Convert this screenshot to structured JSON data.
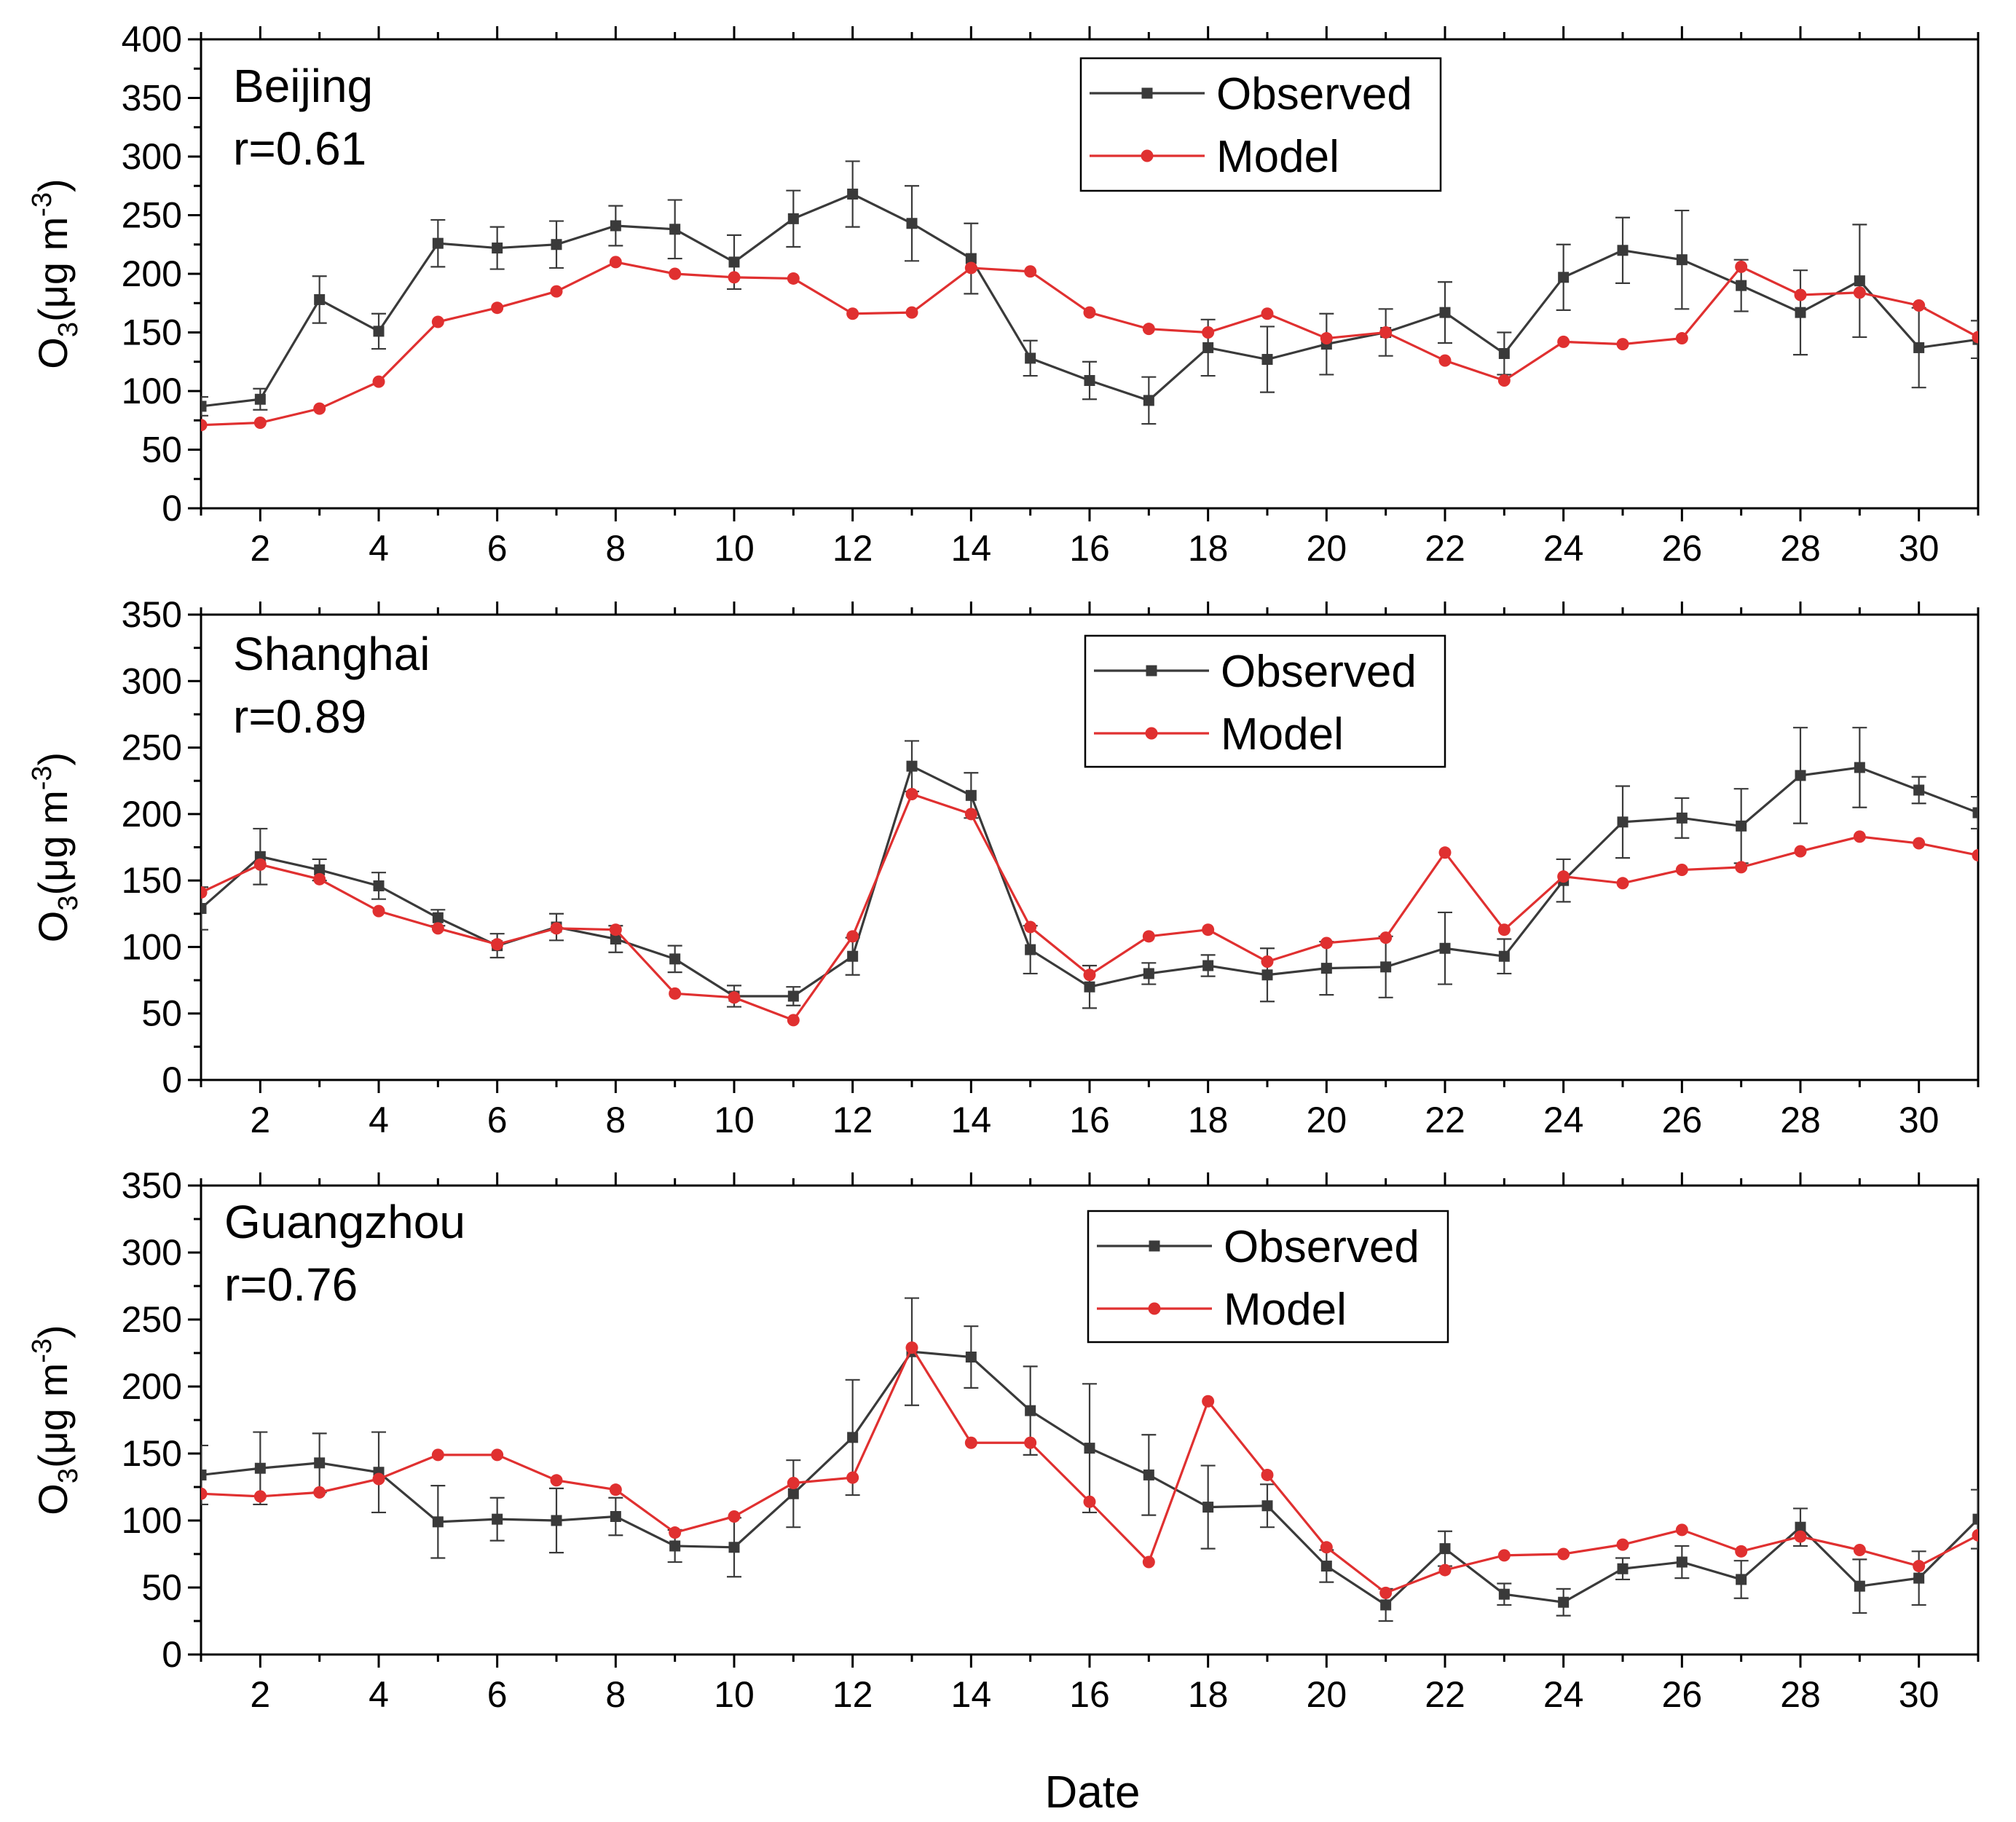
{
  "chart_data": [
    {
      "type": "line",
      "city": "Beijing",
      "annotation": "r=0.61",
      "ylim": [
        0,
        400
      ],
      "yticks": [
        0,
        50,
        100,
        150,
        200,
        250,
        300,
        350,
        400
      ],
      "xlim": [
        1,
        31
      ],
      "xticks": [
        2,
        4,
        6,
        8,
        10,
        12,
        14,
        16,
        18,
        20,
        22,
        24,
        26,
        28,
        30
      ],
      "ylabel_main": "O",
      "ylabel_sub": "3",
      "ylabel_unit": "(μg m",
      "ylabel_sup": "-3",
      "ylabel_close": ")",
      "x": [
        1,
        2,
        3,
        4,
        5,
        6,
        7,
        8,
        9,
        10,
        11,
        12,
        13,
        14,
        15,
        16,
        17,
        18,
        19,
        20,
        21,
        22,
        23,
        24,
        25,
        26,
        27,
        28,
        29,
        30,
        31
      ],
      "series": [
        {
          "name": "Observed",
          "color": "#3a3a3a",
          "marker": "square",
          "values": [
            87,
            93,
            178,
            151,
            226,
            222,
            225,
            241,
            238,
            210,
            247,
            268,
            243,
            213,
            128,
            109,
            92,
            137,
            127,
            140,
            150,
            167,
            132,
            197,
            220,
            212,
            190,
            167,
            194,
            137,
            144
          ],
          "errors": [
            8,
            9,
            20,
            15,
            20,
            18,
            20,
            17,
            25,
            23,
            24,
            28,
            32,
            30,
            15,
            16,
            20,
            24,
            28,
            26,
            20,
            26,
            18,
            28,
            28,
            42,
            22,
            36,
            48,
            34,
            16
          ]
        },
        {
          "name": "Model",
          "color": "#e03030",
          "marker": "circle",
          "values": [
            71,
            73,
            85,
            108,
            159,
            171,
            185,
            210,
            200,
            197,
            196,
            166,
            167,
            205,
            202,
            167,
            153,
            150,
            166,
            145,
            150,
            126,
            109,
            142,
            140,
            145,
            206,
            182,
            184,
            173,
            146
          ]
        }
      ]
    },
    {
      "type": "line",
      "city": "Shanghai",
      "annotation": "r=0.89",
      "ylim": [
        0,
        350
      ],
      "yticks": [
        0,
        50,
        100,
        150,
        200,
        250,
        300,
        350
      ],
      "xlim": [
        1,
        31
      ],
      "xticks": [
        2,
        4,
        6,
        8,
        10,
        12,
        14,
        16,
        18,
        20,
        22,
        24,
        26,
        28,
        30
      ],
      "ylabel_main": "O",
      "ylabel_sub": "3",
      "ylabel_unit": "(μg m",
      "ylabel_sup": "-3",
      "ylabel_close": ")",
      "x": [
        1,
        2,
        3,
        4,
        5,
        6,
        7,
        8,
        9,
        10,
        11,
        12,
        13,
        14,
        15,
        16,
        17,
        18,
        19,
        20,
        21,
        22,
        23,
        24,
        25,
        26,
        27,
        28,
        29,
        30,
        31
      ],
      "series": [
        {
          "name": "Observed",
          "color": "#3a3a3a",
          "marker": "square",
          "values": [
            129,
            168,
            158,
            146,
            122,
            101,
            115,
            106,
            91,
            63,
            63,
            93,
            236,
            214,
            98,
            70,
            80,
            86,
            79,
            84,
            85,
            99,
            93,
            150,
            194,
            197,
            191,
            229,
            235,
            218,
            201
          ],
          "errors": [
            16,
            21,
            8,
            10,
            6,
            9,
            10,
            10,
            10,
            8,
            7,
            14,
            19,
            17,
            18,
            16,
            8,
            8,
            20,
            20,
            23,
            27,
            13,
            16,
            27,
            15,
            28,
            36,
            30,
            10,
            12
          ]
        },
        {
          "name": "Model",
          "color": "#e03030",
          "marker": "circle",
          "values": [
            141,
            162,
            151,
            127,
            114,
            102,
            114,
            113,
            65,
            62,
            45,
            108,
            215,
            200,
            115,
            79,
            108,
            113,
            89,
            103,
            107,
            171,
            113,
            153,
            148,
            158,
            160,
            172,
            183,
            178,
            169
          ]
        }
      ]
    },
    {
      "type": "line",
      "city": "Guangzhou",
      "annotation": "r=0.76",
      "ylim": [
        0,
        350
      ],
      "yticks": [
        0,
        50,
        100,
        150,
        200,
        250,
        300,
        350
      ],
      "xlim": [
        1,
        31
      ],
      "xticks": [
        2,
        4,
        6,
        8,
        10,
        12,
        14,
        16,
        18,
        20,
        22,
        24,
        26,
        28,
        30
      ],
      "ylabel_main": "O",
      "ylabel_sub": "3",
      "ylabel_unit": "(μg m",
      "ylabel_sup": "-3",
      "ylabel_close": ")",
      "xlabel": "Date",
      "x": [
        1,
        2,
        3,
        4,
        5,
        6,
        7,
        8,
        9,
        10,
        11,
        12,
        13,
        14,
        15,
        16,
        17,
        18,
        19,
        20,
        21,
        22,
        23,
        24,
        25,
        26,
        27,
        28,
        29,
        30,
        31
      ],
      "series": [
        {
          "name": "Observed",
          "color": "#3a3a3a",
          "marker": "square",
          "values": [
            134,
            139,
            143,
            136,
            99,
            101,
            100,
            103,
            81,
            80,
            120,
            162,
            226,
            222,
            182,
            154,
            134,
            110,
            111,
            66,
            37,
            79,
            45,
            39,
            64,
            69,
            56,
            95,
            51,
            57,
            101
          ],
          "errors": [
            22,
            27,
            22,
            30,
            27,
            16,
            24,
            14,
            12,
            22,
            25,
            43,
            40,
            23,
            33,
            48,
            30,
            31,
            16,
            12,
            12,
            13,
            8,
            10,
            8,
            12,
            14,
            14,
            20,
            20,
            22
          ]
        },
        {
          "name": "Model",
          "color": "#e03030",
          "marker": "circle",
          "values": [
            120,
            118,
            121,
            131,
            149,
            149,
            130,
            123,
            91,
            103,
            128,
            132,
            229,
            158,
            158,
            114,
            69,
            189,
            134,
            80,
            46,
            63,
            74,
            75,
            82,
            93,
            77,
            88,
            78,
            66,
            89
          ]
        }
      ]
    }
  ]
}
